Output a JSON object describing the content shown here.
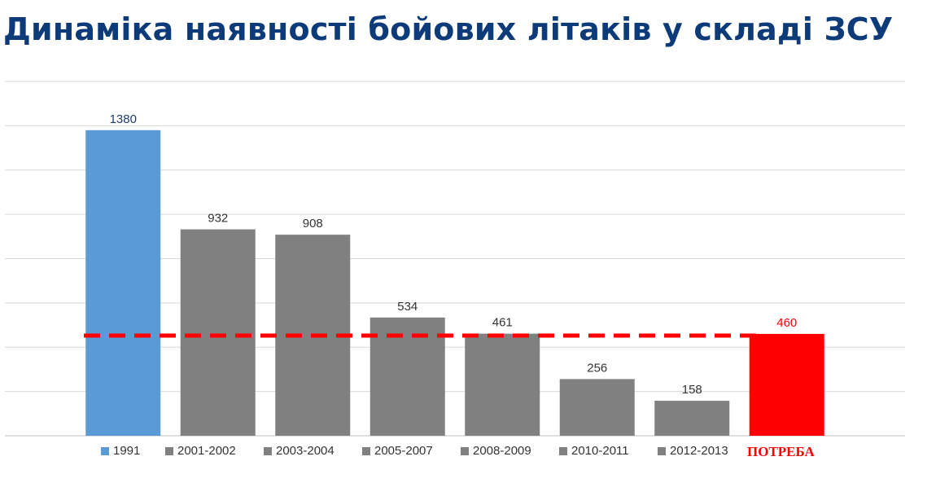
{
  "title": "Динаміка наявності бойових літаків у складі ЗСУ",
  "colors": {
    "title": "#0d3b7a",
    "first": "#5b9bd5",
    "bars": "#808080",
    "need": "#ff0000",
    "grid": "#d9d9d9"
  },
  "chart_data": {
    "type": "bar",
    "categories": [
      "1991",
      "2001-2002",
      "2003-2004",
      "2005-2007",
      "2008-2009",
      "2010-2011",
      "2012-2013",
      "ПОТРЕБА"
    ],
    "values": [
      1380,
      932,
      908,
      534,
      461,
      256,
      158,
      460
    ],
    "data_labels": [
      "1380",
      "932",
      "908",
      "534",
      "461",
      "256",
      "158",
      "460"
    ],
    "bar_colors": [
      "#5b9bd5",
      "#808080",
      "#808080",
      "#808080",
      "#808080",
      "#808080",
      "#808080",
      "#ff0000"
    ],
    "reference_line": {
      "value": 460,
      "style": "dashed",
      "color": "#ff0000"
    },
    "ylim": [
      0,
      1600
    ],
    "grid": true,
    "legend_position": "bottom"
  }
}
